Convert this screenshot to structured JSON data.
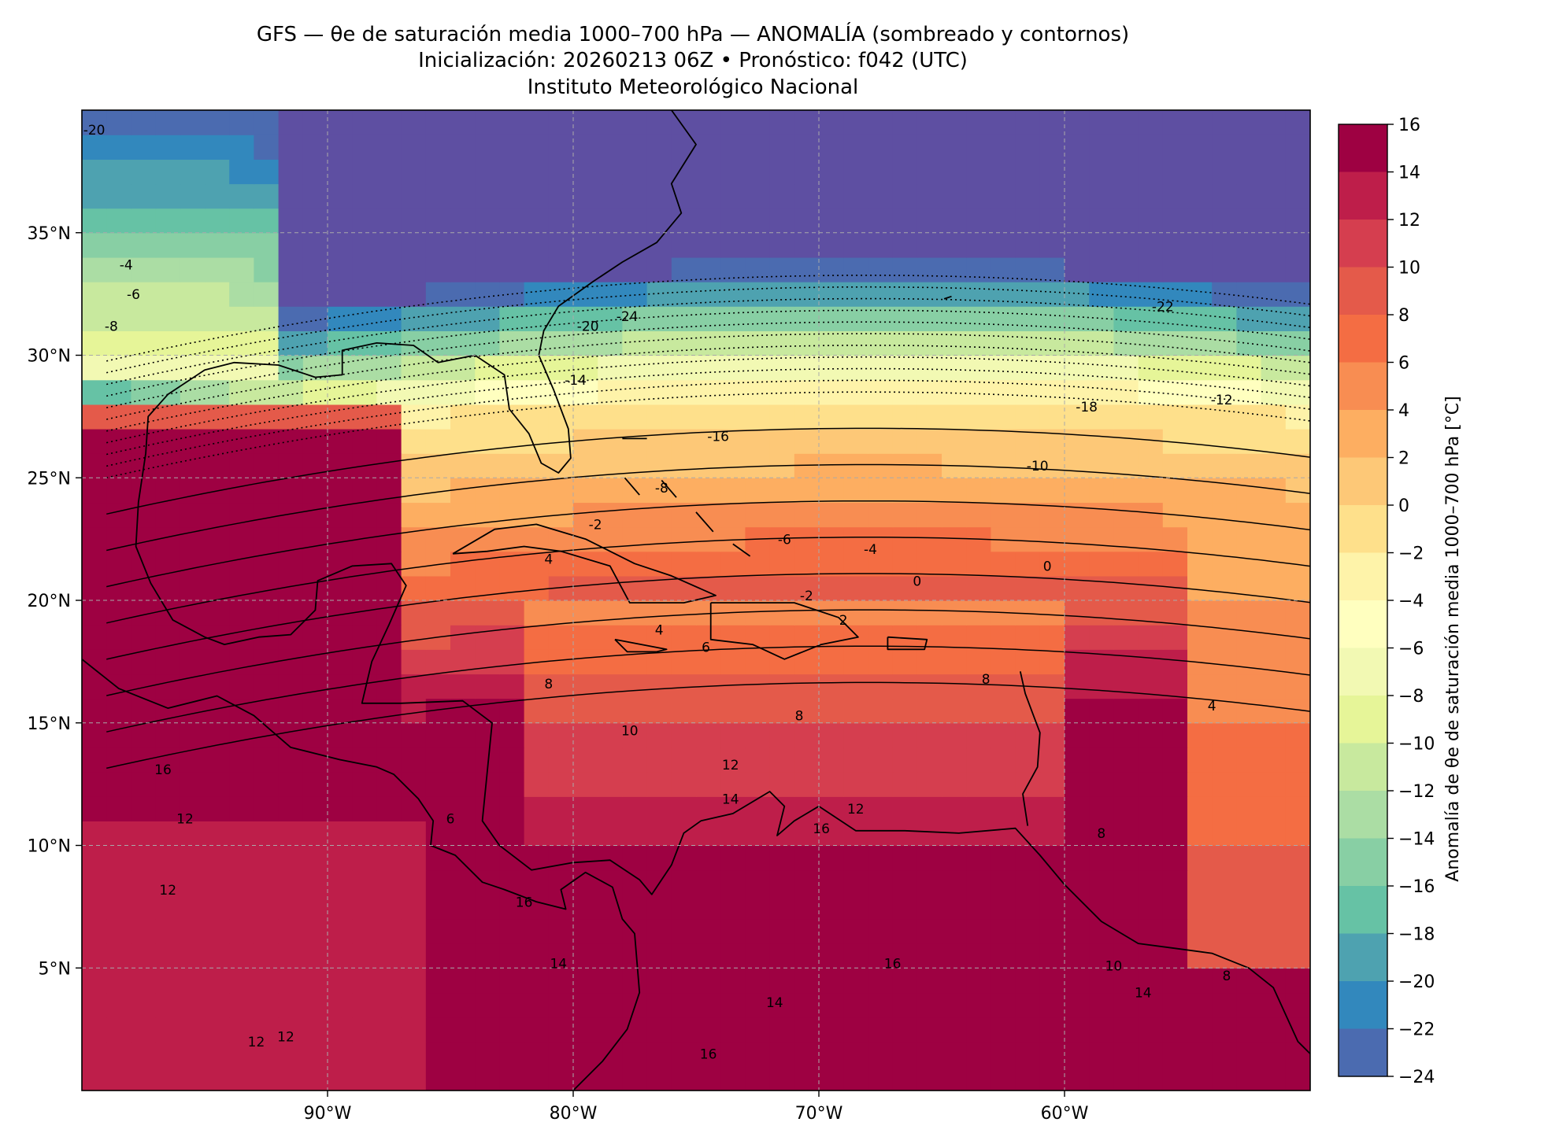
{
  "title": {
    "line1": "GFS — θe de saturación media 1000–700 hPa — ANOMALÍA (sombreado y contornos)",
    "line2": "Inicialización: 20260213 06Z   •   Pronóstico: f042 (UTC)",
    "line3": "Instituto Meteorológico Nacional"
  },
  "map": {
    "lon_range": [
      -100,
      -50
    ],
    "lat_range": [
      0,
      40
    ],
    "lon_ticks": [
      -90,
      -80,
      -70,
      -60
    ],
    "lat_ticks": [
      5,
      10,
      15,
      20,
      25,
      30,
      35
    ],
    "lon_tick_labels": [
      "90°W",
      "80°W",
      "70°W",
      "60°W"
    ],
    "lat_tick_labels": [
      "5°N",
      "10°N",
      "15°N",
      "20°N",
      "25°N",
      "30°N",
      "35°N"
    ],
    "grid": "dashed"
  },
  "colorbar": {
    "label": "Anomalía de θe de saturación media 1000–700 hPa [°C]",
    "ticks": [
      16,
      14,
      12,
      10,
      8,
      6,
      4,
      2,
      0,
      -2,
      -4,
      -6,
      -8,
      -10,
      -12,
      -14,
      -16,
      -18,
      -20,
      -22,
      -24
    ],
    "tick_labels": [
      "16",
      "14",
      "12",
      "10",
      "8",
      "6",
      "4",
      "2",
      "0",
      "−2",
      "−4",
      "−6",
      "−8",
      "−10",
      "−12",
      "−14",
      "−16",
      "−18",
      "−20",
      "−22",
      "−24"
    ],
    "colors_top_to_bottom": [
      "#9e0142",
      "#be1e4a",
      "#d53e4f",
      "#e45a4a",
      "#f46d43",
      "#f88d52",
      "#fdae61",
      "#fdc877",
      "#fee08b",
      "#fef3a9",
      "#ffffbf",
      "#f2f9b3",
      "#e6f598",
      "#c8e99e",
      "#abdda4",
      "#88cfa4",
      "#66c2a5",
      "#4ea2b0",
      "#3288bd",
      "#4b6bb0",
      "#5e4fa2"
    ]
  },
  "contour_labels": [
    {
      "text": "-20",
      "lon": -99.5,
      "lat": 39.0
    },
    {
      "text": "-4",
      "lon": -98.2,
      "lat": 33.5
    },
    {
      "text": "-6",
      "lon": -97.9,
      "lat": 32.3
    },
    {
      "text": "-8",
      "lon": -98.8,
      "lat": 31.0
    },
    {
      "text": "-20",
      "lon": -79.4,
      "lat": 31.0
    },
    {
      "text": "-24",
      "lon": -77.8,
      "lat": 31.4
    },
    {
      "text": "-14",
      "lon": -79.9,
      "lat": 28.8
    },
    {
      "text": "-16",
      "lon": -74.1,
      "lat": 26.5
    },
    {
      "text": "-8",
      "lon": -76.4,
      "lat": 24.4
    },
    {
      "text": "-2",
      "lon": -79.1,
      "lat": 22.9
    },
    {
      "text": "4",
      "lon": -81.0,
      "lat": 21.5
    },
    {
      "text": "-6",
      "lon": -71.4,
      "lat": 22.3
    },
    {
      "text": "-4",
      "lon": -67.9,
      "lat": 21.9
    },
    {
      "text": "-2",
      "lon": -70.5,
      "lat": 20.0
    },
    {
      "text": "2",
      "lon": -69.0,
      "lat": 19.0
    },
    {
      "text": "0",
      "lon": -66.0,
      "lat": 20.6
    },
    {
      "text": "0",
      "lon": -60.7,
      "lat": 21.2
    },
    {
      "text": "-22",
      "lon": -56.0,
      "lat": 31.8
    },
    {
      "text": "-18",
      "lon": -59.1,
      "lat": 27.7
    },
    {
      "text": "-12",
      "lon": -53.6,
      "lat": 28.0
    },
    {
      "text": "-10",
      "lon": -61.1,
      "lat": 25.3
    },
    {
      "text": "4",
      "lon": -76.5,
      "lat": 18.6
    },
    {
      "text": "6",
      "lon": -74.6,
      "lat": 17.9
    },
    {
      "text": "8",
      "lon": -81.0,
      "lat": 16.4
    },
    {
      "text": "8",
      "lon": -63.2,
      "lat": 16.6
    },
    {
      "text": "4",
      "lon": -54.0,
      "lat": 15.5
    },
    {
      "text": "10",
      "lon": -77.7,
      "lat": 14.5
    },
    {
      "text": "8",
      "lon": -70.8,
      "lat": 15.1
    },
    {
      "text": "12",
      "lon": -73.6,
      "lat": 13.1
    },
    {
      "text": "16",
      "lon": -96.7,
      "lat": 12.9
    },
    {
      "text": "14",
      "lon": -73.6,
      "lat": 11.7
    },
    {
      "text": "12",
      "lon": -68.5,
      "lat": 11.3
    },
    {
      "text": "16",
      "lon": -69.9,
      "lat": 10.5
    },
    {
      "text": "12",
      "lon": -95.8,
      "lat": 10.9
    },
    {
      "text": "12",
      "lon": -96.5,
      "lat": 8.0
    },
    {
      "text": "8",
      "lon": -58.5,
      "lat": 10.3
    },
    {
      "text": "6",
      "lon": -85.0,
      "lat": 10.9
    },
    {
      "text": "10",
      "lon": -58.0,
      "lat": 4.9
    },
    {
      "text": "16",
      "lon": -82.0,
      "lat": 7.5
    },
    {
      "text": "14",
      "lon": -80.6,
      "lat": 5.0
    },
    {
      "text": "8",
      "lon": -53.4,
      "lat": 4.5
    },
    {
      "text": "14",
      "lon": -56.8,
      "lat": 3.8
    },
    {
      "text": "14",
      "lon": -71.8,
      "lat": 3.4
    },
    {
      "text": "16",
      "lon": -67.0,
      "lat": 5.0
    },
    {
      "text": "12",
      "lon": -91.7,
      "lat": 2.0
    },
    {
      "text": "12",
      "lon": -92.9,
      "lat": 1.8
    },
    {
      "text": "16",
      "lon": -74.5,
      "lat": 1.3
    }
  ]
}
